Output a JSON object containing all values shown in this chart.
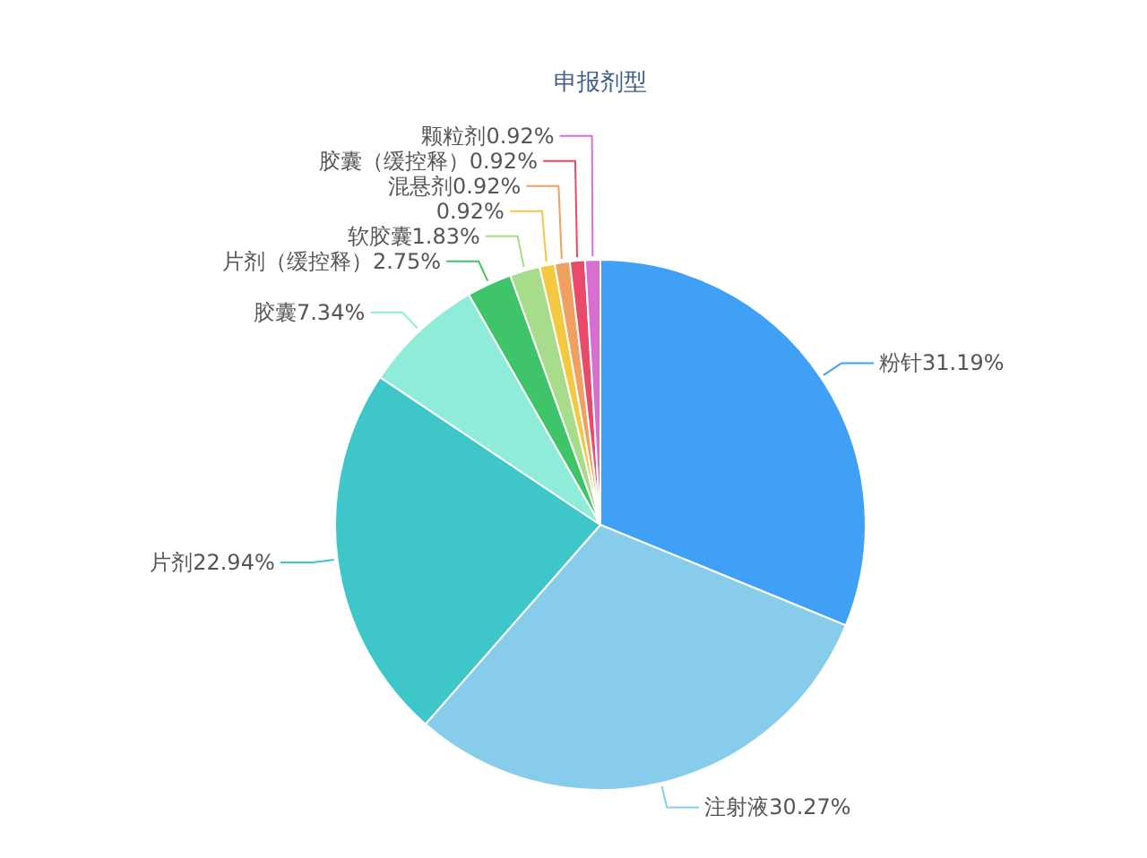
{
  "chart_data": {
    "type": "pie",
    "title": "申报剂型",
    "categories": [
      "粉针",
      "注射液",
      "片剂",
      "胶囊",
      "片剂（缓控释）",
      "软胶囊",
      null,
      "混悬剂",
      "胶囊（缓控释）",
      "颗粒剂"
    ],
    "values": [
      31.19,
      30.27,
      22.94,
      7.34,
      2.75,
      1.83,
      0.92,
      0.92,
      0.92,
      0.92
    ],
    "colors": [
      "#3fa0f5",
      "#87cdeb",
      "#3ec6c8",
      "#8eecd8",
      "#3fc46a",
      "#a6dc8a",
      "#f5c842",
      "#f0a060",
      "#ea4a6a",
      "#d86fd0"
    ],
    "value_labels": [
      "31.19%",
      "30.27%",
      "22.94%",
      "7.34%",
      "2.75%",
      "1.83%",
      "0.92%",
      "0.92%",
      "0.92%",
      "0.92%"
    ]
  }
}
